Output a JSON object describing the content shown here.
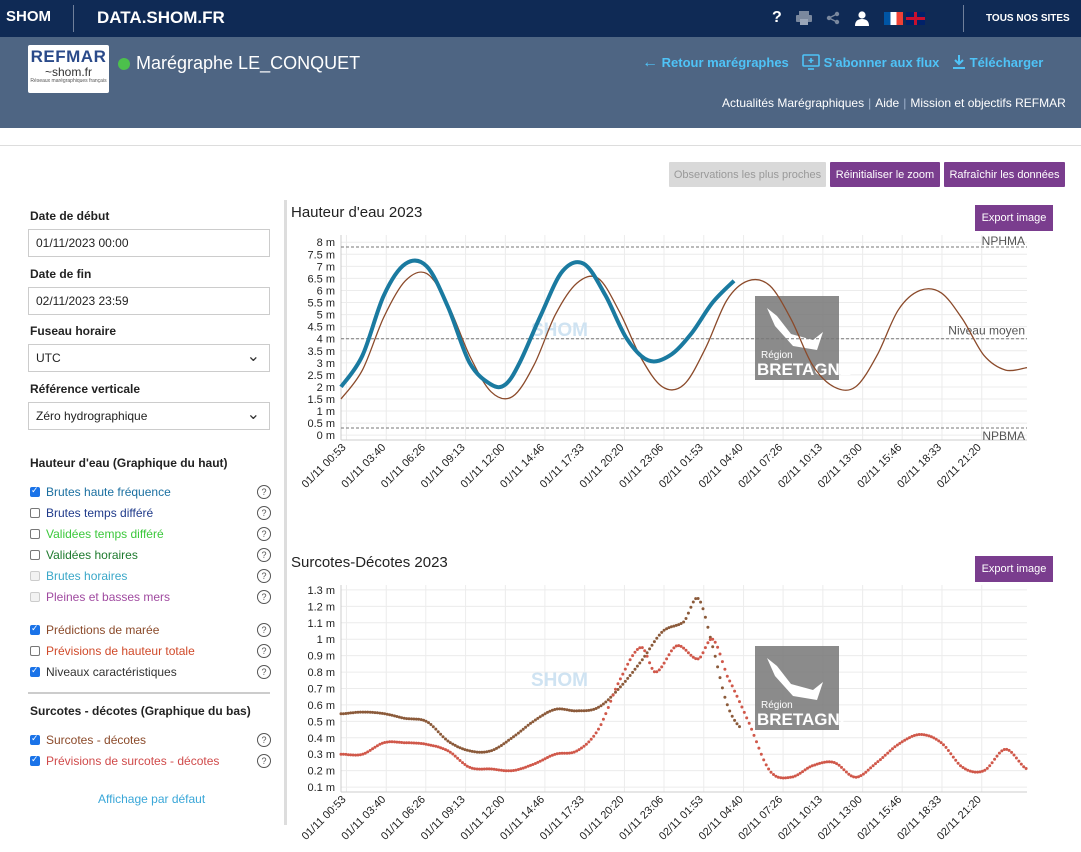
{
  "topbar": {
    "logo": "SHOM",
    "site_title": "DATA.SHOM.FR",
    "help_icon": "?",
    "all_sites": "TOUS NOS SITES"
  },
  "header": {
    "refmar_title": "REFMAR",
    "refmar_sub": "~shom.fr",
    "refmar_caption": "Réseaux marégraphiques français",
    "station": "Marégraphe LE_CONQUET",
    "back": "Retour marégraphes",
    "subscribe": "S'abonner aux flux",
    "download": "Télécharger",
    "sublinks": [
      "Actualités Marégraphiques",
      "Aide",
      "Mission et objectifs REFMAR"
    ]
  },
  "toolbar": {
    "nearest": "Observations les plus proches",
    "reset_zoom": "Réinitialiser le zoom",
    "refresh": "Rafraîchir les données"
  },
  "sidebar": {
    "start_label": "Date de début",
    "start_value": "01/11/2023 00:00",
    "end_label": "Date de fin",
    "end_value": "02/11/2023 23:59",
    "tz_label": "Fuseau horaire",
    "tz_value": "UTC",
    "ref_label": "Référence verticale",
    "ref_value": "Zéro hydrographique",
    "section1": "Hauteur d'eau (Graphique du haut)",
    "items1": [
      {
        "label": "Brutes haute fréquence",
        "checked": true,
        "color": "#1a6fa0"
      },
      {
        "label": "Brutes temps différé",
        "checked": false,
        "color": "#1f3a8a"
      },
      {
        "label": "Validées temps différé",
        "checked": false,
        "color": "#3cc83c"
      },
      {
        "label": "Validées horaires",
        "checked": false,
        "color": "#1e7a2e"
      },
      {
        "label": "Brutes horaires",
        "checked": false,
        "color": "#3aa7c8"
      },
      {
        "label": "Pleines et basses mers",
        "checked": false,
        "color": "#a04aa0"
      }
    ],
    "items2": [
      {
        "label": "Prédictions de marée",
        "checked": true,
        "color": "#8b4a2a"
      },
      {
        "label": "Prévisions de hauteur totale",
        "checked": false,
        "color": "#d04a2a"
      },
      {
        "label": "Niveaux caractéristiques",
        "checked": true,
        "color": "#333333"
      }
    ],
    "section2": "Surcotes - décotes (Graphique du bas)",
    "items3": [
      {
        "label": "Surcotes - décotes",
        "checked": true,
        "color": "#8b4a2a"
      },
      {
        "label": "Prévisions de surcotes - décotes",
        "checked": true,
        "color": "#d04a4a"
      }
    ],
    "default_link": "Affichage par défaut",
    "help": "?"
  },
  "chart1": {
    "title": "Hauteur d'eau 2023",
    "export": "Export image",
    "yticks": [
      "0 m",
      "0.5 m",
      "1 m",
      "1.5 m",
      "2 m",
      "2.5 m",
      "3 m",
      "3.5 m",
      "4 m",
      "4.5 m",
      "5 m",
      "5.5 m",
      "6 m",
      "6.5 m",
      "7 m",
      "7.5 m",
      "8 m"
    ],
    "ref_lines": [
      {
        "label": "NPHMA",
        "value": 7.8
      },
      {
        "label": "Niveau moyen",
        "value": 4.0
      },
      {
        "label": "NPBMA",
        "value": 0.3
      }
    ]
  },
  "chart2": {
    "title": "Surcotes-Décotes 2023",
    "export": "Export image",
    "yticks": [
      "0.1 m",
      "0.2 m",
      "0.3 m",
      "0.4 m",
      "0.5 m",
      "0.6 m",
      "0.7 m",
      "0.8 m",
      "0.9 m",
      "1 m",
      "1.1 m",
      "1.2 m",
      "1.3 m"
    ]
  },
  "xticks": [
    "01/11 00:53",
    "01/11 03:40",
    "01/11 06:26",
    "01/11 09:13",
    "01/11 12:00",
    "01/11 14:46",
    "01/11 17:33",
    "01/11 20:20",
    "01/11 23:06",
    "02/11 01:53",
    "02/11 04:40",
    "02/11 07:26",
    "02/11 10:13",
    "02/11 13:00",
    "02/11 15:46",
    "02/11 18:33",
    "02/11 21:20"
  ],
  "watermark": {
    "shom": "SHOM",
    "region1": "Région",
    "region2": "BRETAGNE"
  },
  "chart_data": [
    {
      "type": "line",
      "title": "Hauteur d'eau 2023",
      "x_unit": "hours since 01/11 00:00",
      "ylim": [
        -0.2,
        8.3
      ],
      "series": [
        {
          "name": "Brutes haute fréquence",
          "color": "#1a7aa0",
          "x": [
            0.5,
            2,
            3.5,
            5,
            6.5,
            8,
            9.5,
            11,
            12,
            13,
            14.5,
            16,
            17.5,
            19,
            20.5,
            22,
            23.5,
            25,
            26.5,
            28
          ],
          "y": [
            2.0,
            3.3,
            5.8,
            7.1,
            7.0,
            5.3,
            3.0,
            2.1,
            2.1,
            3.0,
            5.0,
            6.8,
            7.1,
            5.8,
            4.0,
            3.1,
            3.3,
            4.2,
            5.5,
            6.4
          ]
        },
        {
          "name": "Prédictions de marée",
          "color": "#8b4a2a",
          "x": [
            0.5,
            2,
            3.5,
            5,
            6.5,
            8,
            9.5,
            11,
            12.5,
            14,
            15.5,
            17,
            18.5,
            20,
            21.5,
            23,
            24.5,
            26,
            27.5,
            29,
            30.5,
            32,
            33.5,
            35,
            36.5,
            38,
            39.5,
            41,
            42.5,
            44,
            45.5,
            47,
            48.5
          ],
          "y": [
            1.5,
            2.7,
            4.9,
            6.4,
            6.7,
            5.4,
            3.3,
            1.8,
            1.6,
            2.9,
            5.0,
            6.3,
            6.5,
            5.1,
            3.2,
            2.0,
            2.1,
            3.6,
            5.6,
            6.4,
            6.2,
            4.8,
            2.9,
            2.0,
            2.0,
            3.3,
            5.2,
            6.0,
            5.9,
            4.8,
            3.3,
            2.7,
            2.8
          ]
        }
      ]
    },
    {
      "type": "scatter",
      "title": "Surcotes-Décotes 2023",
      "x_unit": "hours since 01/11 00:00",
      "ylim": [
        0.07,
        1.33
      ],
      "series": [
        {
          "name": "Surcotes - décotes",
          "color": "#8b5a3a",
          "x": [
            0.5,
            2,
            3.5,
            5,
            6.5,
            8,
            9.5,
            11,
            12.5,
            14,
            15.5,
            17,
            18.5,
            20,
            21.5,
            23,
            24.5,
            25.5,
            26.5,
            27.5,
            28.5
          ],
          "y": [
            0.55,
            0.56,
            0.55,
            0.52,
            0.5,
            0.38,
            0.32,
            0.32,
            0.4,
            0.5,
            0.57,
            0.56,
            0.58,
            0.7,
            0.86,
            1.04,
            1.1,
            1.24,
            0.95,
            0.6,
            0.45
          ]
        },
        {
          "name": "Prévisions de surcotes - décotes",
          "color": "#d0584a",
          "x": [
            0.5,
            2,
            3.5,
            5,
            6.5,
            8,
            9.5,
            11,
            12.5,
            14,
            15.5,
            17,
            18.5,
            20,
            21.5,
            22.5,
            24,
            25.5,
            26.5,
            27.5,
            29,
            30.5,
            32,
            33.5,
            35,
            36.5,
            38,
            39.5,
            41,
            42.5,
            44,
            45.5,
            47,
            48.5
          ],
          "y": [
            0.3,
            0.3,
            0.37,
            0.37,
            0.36,
            0.32,
            0.22,
            0.21,
            0.2,
            0.24,
            0.3,
            0.32,
            0.45,
            0.75,
            0.95,
            0.8,
            0.96,
            0.88,
            1.0,
            0.78,
            0.5,
            0.2,
            0.16,
            0.23,
            0.25,
            0.16,
            0.25,
            0.36,
            0.42,
            0.37,
            0.22,
            0.2,
            0.33,
            0.21
          ]
        }
      ]
    }
  ]
}
